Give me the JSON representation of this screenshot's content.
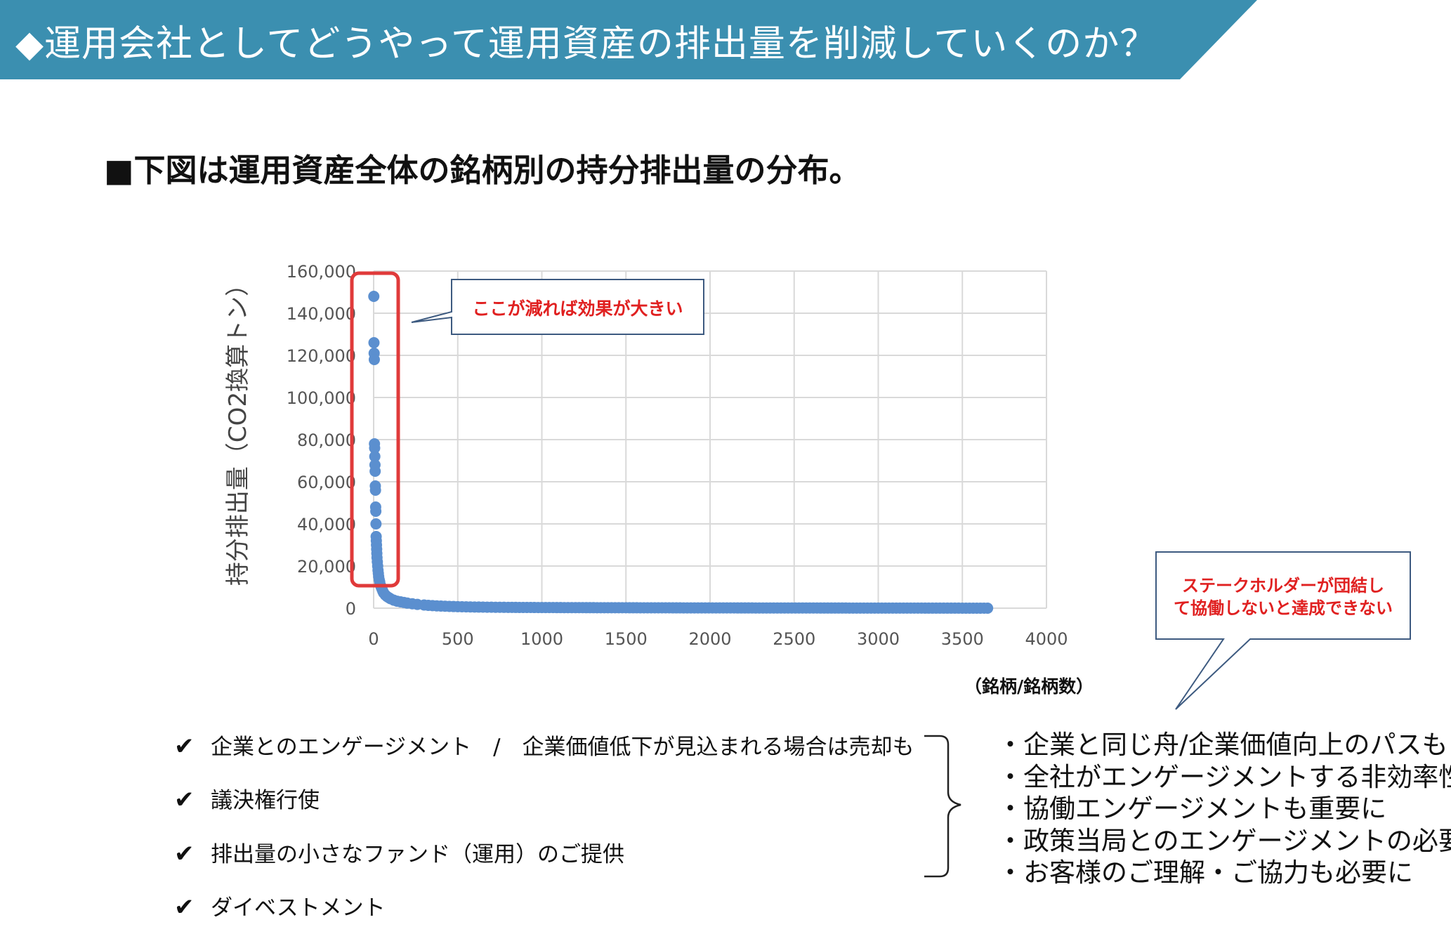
{
  "header": {
    "title": "◆運用会社としてどうやって運用資産の排出量を削減していくのか？"
  },
  "subtitle": "■下図は運用資産全体の銘柄別の持分排出量の分布。",
  "chart_data": {
    "type": "scatter",
    "title": "",
    "ylabel": "持分排出量（CO2換算トン）",
    "xlabel": "（銘柄/銘柄数）",
    "xlim": [
      0,
      4000
    ],
    "ylim": [
      0,
      160000
    ],
    "x_ticks": [
      0,
      500,
      1000,
      1500,
      2000,
      2500,
      3000,
      3500,
      4000
    ],
    "y_ticks": [
      0,
      20000,
      40000,
      60000,
      80000,
      100000,
      120000,
      140000,
      160000
    ],
    "x_tick_labels": [
      "0",
      "500",
      "1000",
      "1500",
      "2000",
      "2500",
      "3000",
      "3500",
      "4000"
    ],
    "y_tick_labels": [
      "0",
      "20,000",
      "40,000",
      "60,000",
      "80,000",
      "100,000",
      "120,000",
      "140,000",
      "160,000"
    ],
    "grid": true,
    "point_color": "#5b8fcf",
    "highlight_color": "#e03a3a",
    "points": [
      [
        1,
        148000
      ],
      [
        2,
        126000
      ],
      [
        3,
        121000
      ],
      [
        4,
        118000
      ],
      [
        5,
        78000
      ],
      [
        6,
        76000
      ],
      [
        7,
        72000
      ],
      [
        8,
        68000
      ],
      [
        9,
        65000
      ],
      [
        10,
        58000
      ],
      [
        11,
        56000
      ],
      [
        12,
        48000
      ],
      [
        13,
        46000
      ],
      [
        14,
        40000
      ],
      [
        15,
        34000
      ],
      [
        16,
        32000
      ],
      [
        17,
        30000
      ],
      [
        18,
        28000
      ],
      [
        19,
        26000
      ],
      [
        20,
        24000
      ],
      [
        22,
        22000
      ],
      [
        24,
        20000
      ],
      [
        26,
        18000
      ],
      [
        28,
        16500
      ],
      [
        30,
        15000
      ],
      [
        33,
        13500
      ],
      [
        36,
        12500
      ],
      [
        40,
        11000
      ],
      [
        45,
        10000
      ],
      [
        50,
        9000
      ],
      [
        55,
        8000
      ],
      [
        60,
        7200
      ],
      [
        70,
        6200
      ],
      [
        80,
        5500
      ],
      [
        90,
        5000
      ],
      [
        100,
        4500
      ],
      [
        120,
        3800
      ],
      [
        140,
        3300
      ],
      [
        160,
        3000
      ],
      [
        180,
        2700
      ],
      [
        200,
        2400
      ],
      [
        230,
        2100
      ],
      [
        260,
        1800
      ],
      [
        300,
        1500
      ],
      [
        350,
        1200
      ],
      [
        400,
        1000
      ],
      [
        450,
        850
      ],
      [
        500,
        700
      ],
      [
        600,
        550
      ],
      [
        700,
        450
      ],
      [
        800,
        380
      ],
      [
        1000,
        300
      ],
      [
        1200,
        250
      ],
      [
        1500,
        200
      ],
      [
        1800,
        150
      ],
      [
        2100,
        120
      ],
      [
        2400,
        90
      ],
      [
        2700,
        70
      ],
      [
        3000,
        50
      ],
      [
        3300,
        30
      ],
      [
        3500,
        20
      ],
      [
        3650,
        10
      ]
    ],
    "annotations": [
      "ここが減れば効果が大きい",
      "ステークホルダーが団結して協働しないと達成できない"
    ]
  },
  "callouts": {
    "top": "ここが減れば効果が大きい",
    "right_line1": "ステークホルダーが団結し",
    "right_line2": "て協働しないと達成できない"
  },
  "left_list": [
    "企業とのエンゲージメント　/　企業価値低下が見込まれる場合は売却も",
    "議決権行使",
    "排出量の小さなファンド（運用）のご提供",
    "ダイベストメント"
  ],
  "check_symbol": "✔",
  "right_list": [
    "・企業と同じ舟/企業価値向上のパスも",
    "・全社がエンゲージメントする非効率性",
    "・協働エンゲージメントも重要に",
    "・政策当局とのエンゲージメントの必要性",
    "・お客様のご理解・ご協力も必要に"
  ]
}
